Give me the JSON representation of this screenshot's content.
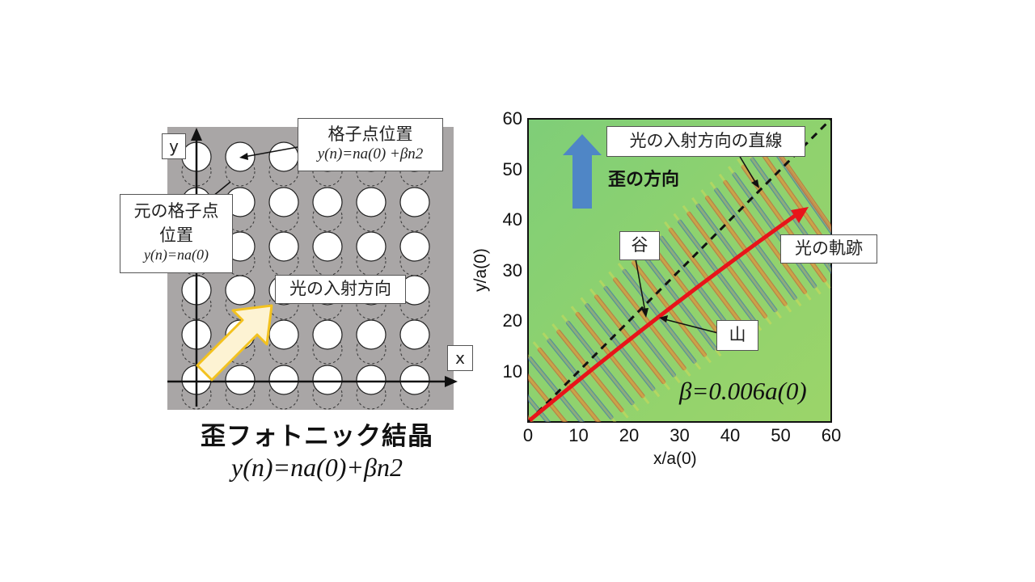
{
  "left_panel": {
    "axis_y_label": "y",
    "axis_x_label": "x",
    "lattice_point_label": "格子点位置",
    "lattice_point_formula": "y(n)=na(0) +βn2",
    "original_point_label_line1": "元の格子点",
    "original_point_label_line2": "位置",
    "original_point_formula": "y(n)=na(0)",
    "incident_direction_label": "光の入射方向",
    "title": "歪フォトニック結晶",
    "formula": "y(n)=na(0)+βn2"
  },
  "right_panel": {
    "incident_line_label": "光の入射方向の直線",
    "strain_direction_label": "歪の方向",
    "trajectory_label": "光の軌跡",
    "valley_label": "谷",
    "peak_label": "山",
    "beta_label": "β=0.006a(0)",
    "xlabel": "x/a(0)",
    "ylabel": "y/a(0)",
    "x_ticks": [
      "0",
      "10",
      "20",
      "30",
      "40",
      "50",
      "60"
    ],
    "y_ticks": [
      "60",
      "50",
      "40",
      "30",
      "20",
      "10"
    ]
  },
  "colors": {
    "gray_background": "#a9a6a6",
    "trajectory": "#e8141a",
    "strain_arrow": "#4f86c6",
    "incident_arrow_fill": "#fdf3d3",
    "incident_arrow_stroke": "#f3c21f"
  }
}
